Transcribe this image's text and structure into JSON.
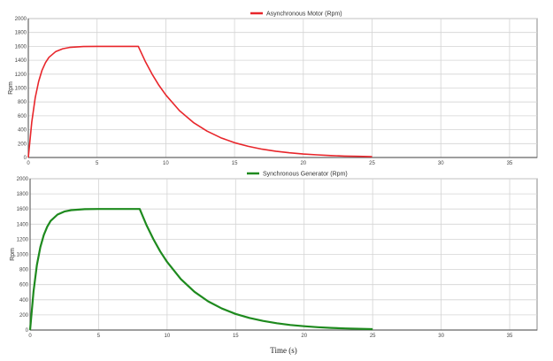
{
  "chart_data": [
    {
      "type": "line",
      "title": "",
      "xlabel": "",
      "ylabel": "Rpm",
      "xlim": [
        0,
        37
      ],
      "ylim": [
        0,
        2000
      ],
      "grid": true,
      "legend_placement": "top-center",
      "x_ticks": [
        0,
        5,
        10,
        15,
        20,
        25,
        30,
        35
      ],
      "y_ticks": [
        0,
        200,
        400,
        600,
        800,
        1000,
        1200,
        1400,
        1600,
        1800,
        2000
      ],
      "series": [
        {
          "name": "Asynchronous Motor (Rpm)",
          "color": "#e8262b",
          "x": [
            0,
            0.25,
            0.5,
            0.75,
            1,
            1.25,
            1.5,
            2,
            2.5,
            3,
            4,
            5,
            6,
            7,
            8,
            8.5,
            9,
            9.5,
            10,
            11,
            12,
            13,
            14,
            15,
            16,
            17,
            18,
            19,
            20,
            21,
            22,
            23,
            24,
            25
          ],
          "y": [
            0,
            510,
            860,
            1096,
            1256,
            1366,
            1442,
            1526,
            1566,
            1585,
            1598,
            1600,
            1600,
            1600,
            1600,
            1386,
            1200,
            1039,
            900,
            674,
            505,
            379,
            284,
            213,
            160,
            120,
            90,
            67,
            50,
            38,
            28,
            21,
            16,
            12
          ]
        }
      ]
    },
    {
      "type": "line",
      "title": "",
      "xlabel": "Time (s)",
      "ylabel": "Rpm",
      "xlim": [
        0,
        37
      ],
      "ylim": [
        0,
        2000
      ],
      "grid": true,
      "legend_placement": "top-center",
      "x_ticks": [
        0,
        5,
        10,
        15,
        20,
        25,
        30,
        35
      ],
      "y_ticks": [
        0,
        200,
        400,
        600,
        800,
        1000,
        1200,
        1400,
        1600,
        1800,
        2000
      ],
      "series": [
        {
          "name": "Synchronous Generator (Rpm)",
          "color": "#1e8a1e",
          "x": [
            0,
            0.25,
            0.5,
            0.75,
            1,
            1.25,
            1.5,
            2,
            2.5,
            3,
            4,
            5,
            6,
            7,
            8,
            8.5,
            9,
            9.5,
            10,
            11,
            12,
            13,
            14,
            15,
            16,
            17,
            18,
            19,
            20,
            21,
            22,
            23,
            24,
            25
          ],
          "y": [
            0,
            510,
            860,
            1096,
            1256,
            1366,
            1442,
            1526,
            1566,
            1585,
            1598,
            1600,
            1600,
            1600,
            1600,
            1386,
            1200,
            1039,
            900,
            674,
            505,
            379,
            284,
            213,
            160,
            120,
            90,
            67,
            50,
            38,
            28,
            21,
            16,
            12
          ]
        }
      ]
    }
  ]
}
